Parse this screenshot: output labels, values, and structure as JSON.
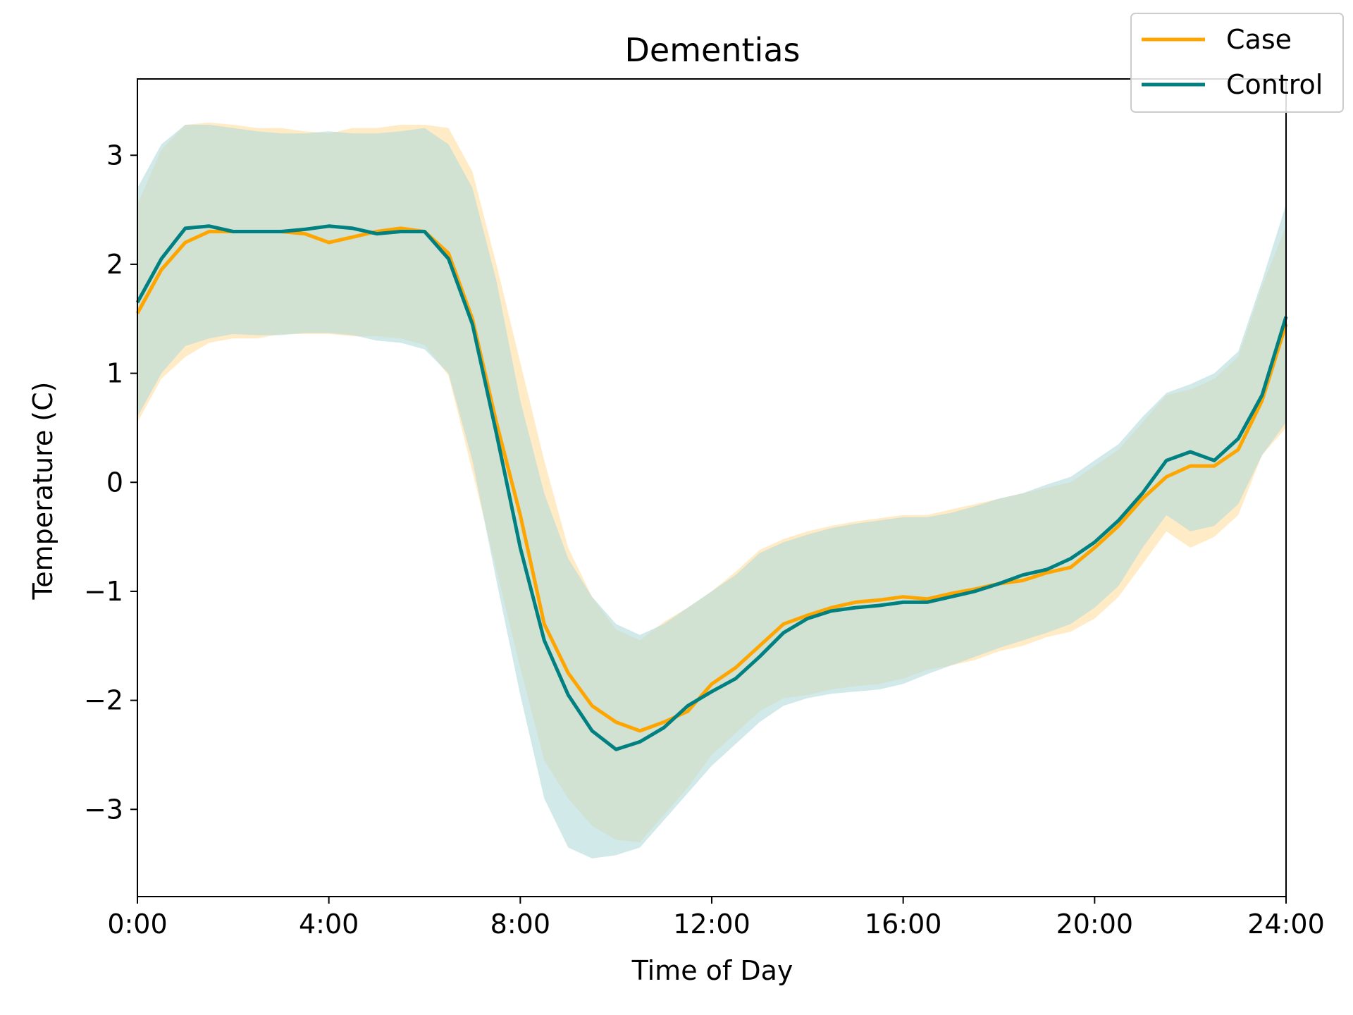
{
  "chart_data": {
    "type": "line",
    "title": "Dementias",
    "xlabel": "Time of Day",
    "ylabel": "Temperature (C)",
    "x_tick_labels": [
      "0:00",
      "4:00",
      "8:00",
      "12:00",
      "16:00",
      "20:00",
      "24:00"
    ],
    "x_ticks": [
      0,
      4,
      8,
      12,
      16,
      20,
      24
    ],
    "y_tick_labels": [
      "−3",
      "−2",
      "−1",
      "0",
      "1",
      "2",
      "3"
    ],
    "y_ticks": [
      -3,
      -2,
      -1,
      0,
      1,
      2,
      3
    ],
    "xlim": [
      0,
      24
    ],
    "ylim": [
      -3.8,
      3.7
    ],
    "grid": false,
    "legend": "top-right",
    "x": [
      0,
      0.5,
      1,
      1.5,
      2,
      2.5,
      3,
      3.5,
      4,
      4.5,
      5,
      5.5,
      6,
      6.5,
      7,
      7.5,
      8,
      8.5,
      9,
      9.5,
      10,
      10.5,
      11,
      11.5,
      12,
      12.5,
      13,
      13.5,
      14,
      14.5,
      15,
      15.5,
      16,
      16.5,
      17,
      17.5,
      18,
      18.5,
      19,
      19.5,
      20,
      20.5,
      21,
      21.5,
      22,
      22.5,
      23,
      23.5,
      24
    ],
    "series": [
      {
        "name": "Case",
        "color": "#ffa500",
        "band_color": "#ffe4b3",
        "values": [
          1.55,
          1.95,
          2.2,
          2.3,
          2.3,
          2.3,
          2.3,
          2.28,
          2.2,
          2.25,
          2.3,
          2.33,
          2.3,
          2.1,
          1.5,
          0.55,
          -0.3,
          -1.3,
          -1.75,
          -2.05,
          -2.2,
          -2.28,
          -2.2,
          -2.1,
          -1.85,
          -1.7,
          -1.5,
          -1.3,
          -1.22,
          -1.15,
          -1.1,
          -1.08,
          -1.05,
          -1.07,
          -1.02,
          -0.98,
          -0.93,
          -0.9,
          -0.83,
          -0.78,
          -0.6,
          -0.4,
          -0.15,
          0.05,
          0.15,
          0.15,
          0.3,
          0.75,
          1.45
        ],
        "lower": [
          0.55,
          0.95,
          1.15,
          1.28,
          1.32,
          1.32,
          1.36,
          1.36,
          1.36,
          1.34,
          1.34,
          1.32,
          1.26,
          0.98,
          0.1,
          -0.8,
          -1.7,
          -2.55,
          -2.9,
          -3.15,
          -3.28,
          -3.3,
          -3.05,
          -2.8,
          -2.5,
          -2.3,
          -2.1,
          -1.98,
          -1.95,
          -1.9,
          -1.87,
          -1.85,
          -1.8,
          -1.72,
          -1.68,
          -1.63,
          -1.55,
          -1.5,
          -1.42,
          -1.37,
          -1.25,
          -1.05,
          -0.75,
          -0.45,
          -0.6,
          -0.5,
          -0.3,
          0.25,
          0.5
        ],
        "upper": [
          2.55,
          3.05,
          3.28,
          3.3,
          3.28,
          3.25,
          3.25,
          3.22,
          3.2,
          3.25,
          3.25,
          3.28,
          3.28,
          3.25,
          2.85,
          2.0,
          1.1,
          0.2,
          -0.6,
          -1.05,
          -1.35,
          -1.45,
          -1.28,
          -1.15,
          -1.0,
          -0.82,
          -0.62,
          -0.52,
          -0.45,
          -0.4,
          -0.36,
          -0.33,
          -0.3,
          -0.3,
          -0.25,
          -0.2,
          -0.15,
          -0.1,
          -0.05,
          0.0,
          0.15,
          0.3,
          0.55,
          0.8,
          0.85,
          0.95,
          1.15,
          1.8,
          2.35
        ]
      },
      {
        "name": "Control",
        "color": "#008080",
        "band_color": "#b3dada",
        "values": [
          1.65,
          2.05,
          2.33,
          2.35,
          2.3,
          2.3,
          2.3,
          2.32,
          2.35,
          2.33,
          2.28,
          2.3,
          2.3,
          2.05,
          1.45,
          0.45,
          -0.6,
          -1.45,
          -1.95,
          -2.28,
          -2.45,
          -2.38,
          -2.25,
          -2.05,
          -1.92,
          -1.8,
          -1.6,
          -1.38,
          -1.25,
          -1.18,
          -1.15,
          -1.13,
          -1.1,
          -1.1,
          -1.05,
          -1.0,
          -0.93,
          -0.85,
          -0.8,
          -0.7,
          -0.55,
          -0.35,
          -0.1,
          0.2,
          0.28,
          0.2,
          0.4,
          0.8,
          1.52
        ],
        "lower": [
          0.6,
          1.0,
          1.25,
          1.32,
          1.36,
          1.35,
          1.35,
          1.37,
          1.37,
          1.35,
          1.3,
          1.28,
          1.22,
          1.0,
          0.2,
          -0.9,
          -1.95,
          -2.9,
          -3.35,
          -3.45,
          -3.42,
          -3.35,
          -3.1,
          -2.85,
          -2.6,
          -2.4,
          -2.2,
          -2.05,
          -1.98,
          -1.94,
          -1.92,
          -1.9,
          -1.85,
          -1.76,
          -1.68,
          -1.6,
          -1.52,
          -1.45,
          -1.38,
          -1.3,
          -1.15,
          -0.95,
          -0.6,
          -0.3,
          -0.45,
          -0.4,
          -0.2,
          0.25,
          0.55
        ],
        "upper": [
          2.7,
          3.1,
          3.28,
          3.28,
          3.25,
          3.22,
          3.2,
          3.2,
          3.22,
          3.2,
          3.2,
          3.22,
          3.25,
          3.1,
          2.7,
          1.85,
          0.75,
          -0.1,
          -0.7,
          -1.05,
          -1.3,
          -1.4,
          -1.3,
          -1.15,
          -1.0,
          -0.85,
          -0.65,
          -0.55,
          -0.48,
          -0.42,
          -0.38,
          -0.35,
          -0.32,
          -0.32,
          -0.28,
          -0.22,
          -0.15,
          -0.1,
          -0.02,
          0.05,
          0.2,
          0.35,
          0.6,
          0.82,
          0.9,
          1.0,
          1.2,
          1.85,
          2.55
        ]
      }
    ]
  }
}
